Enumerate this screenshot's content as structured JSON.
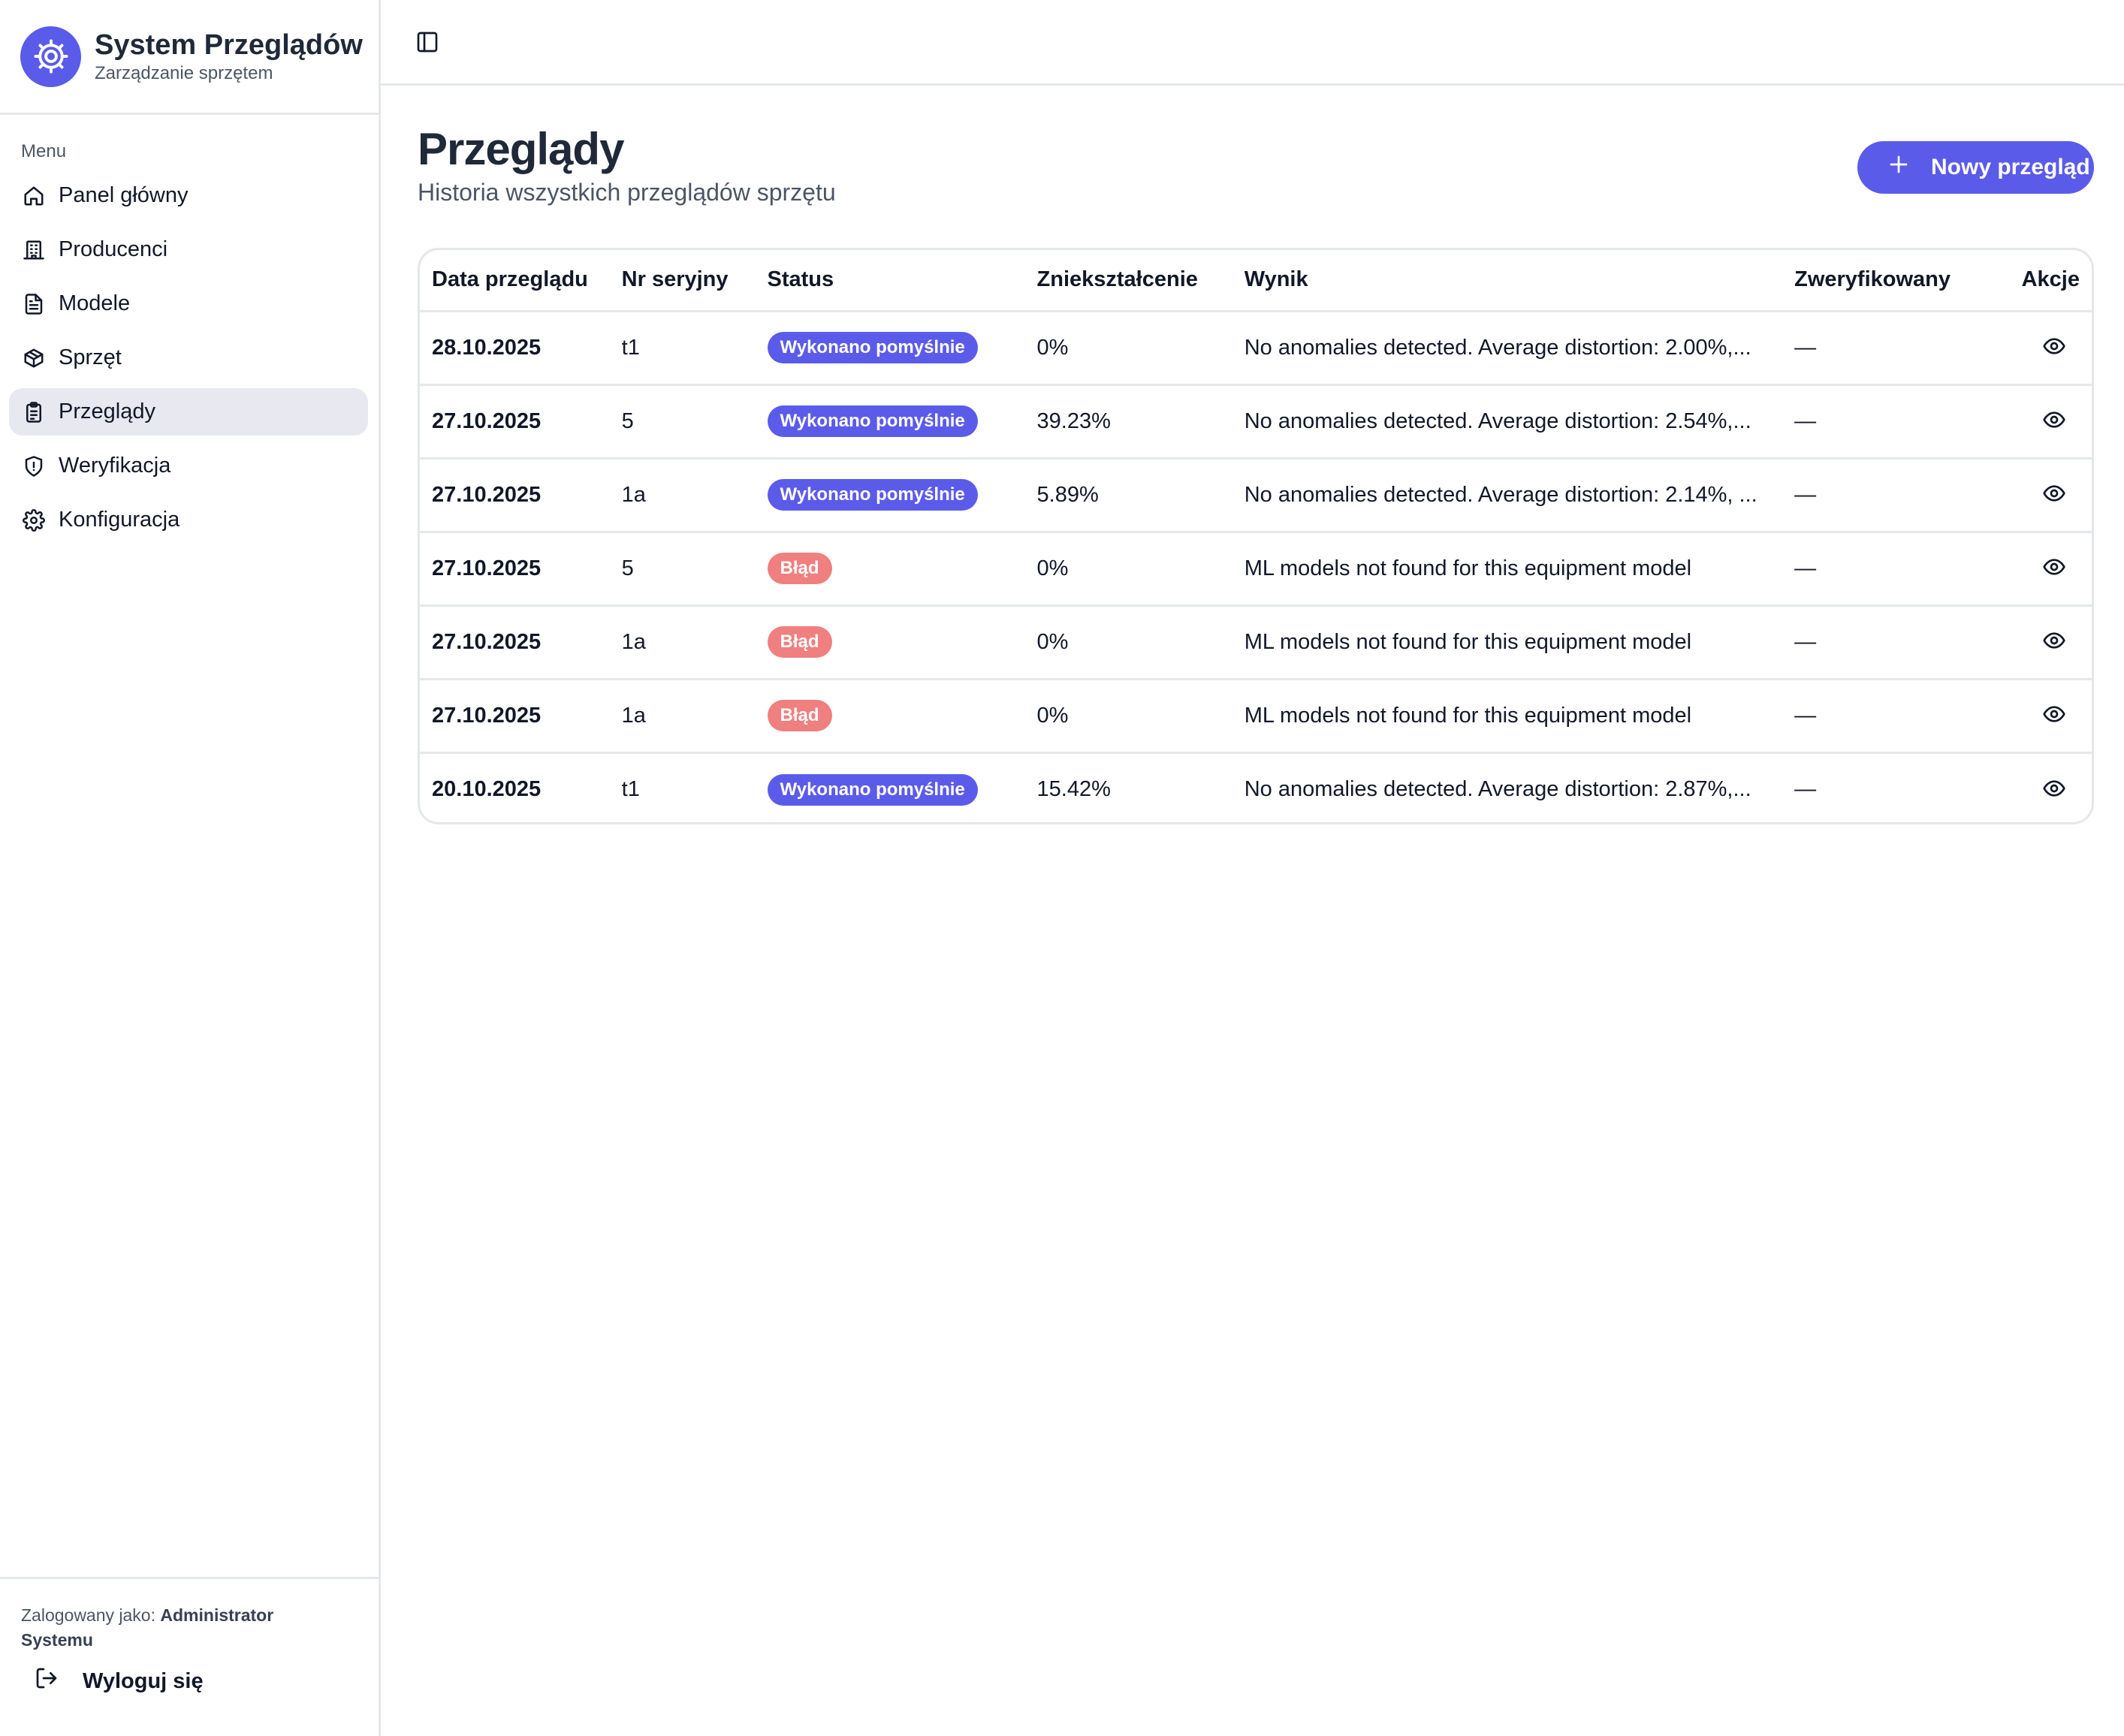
{
  "app": {
    "title": "System Przeglądów",
    "subtitle": "Zarządzanie sprzętem"
  },
  "sidebar": {
    "menu_label": "Menu",
    "items": [
      {
        "label": "Panel główny",
        "icon": "home-icon",
        "active": false
      },
      {
        "label": "Producenci",
        "icon": "building-icon",
        "active": false
      },
      {
        "label": "Modele",
        "icon": "document-icon",
        "active": false
      },
      {
        "label": "Sprzęt",
        "icon": "box-icon",
        "active": false
      },
      {
        "label": "Przeglądy",
        "icon": "clipboard-icon",
        "active": true
      },
      {
        "label": "Weryfikacja",
        "icon": "shield-icon",
        "active": false
      },
      {
        "label": "Konfiguracja",
        "icon": "gear-icon",
        "active": false
      }
    ],
    "footer": {
      "logged_as_prefix": "Zalogowany jako:",
      "user_name": "Administrator Systemu",
      "logout_label": "Wyloguj się"
    }
  },
  "page": {
    "title": "Przeglądy",
    "subtitle": "Historia wszystkich przeglądów sprzętu",
    "new_button_label": "Nowy przegląd"
  },
  "table": {
    "columns": [
      "Data przeglądu",
      "Nr seryjny",
      "Status",
      "Zniekształcenie",
      "Wynik",
      "Zweryfikowany",
      "Akcje"
    ],
    "rows": [
      {
        "date": "28.10.2025",
        "serial": "t1",
        "status": "Wykonano pomyślnie",
        "status_type": "success",
        "distortion": "0%",
        "result": "No anomalies detected. Average distortion: 2.00%,...",
        "verified": "—"
      },
      {
        "date": "27.10.2025",
        "serial": "5",
        "status": "Wykonano pomyślnie",
        "status_type": "success",
        "distortion": "39.23%",
        "result": "No anomalies detected. Average distortion: 2.54%,...",
        "verified": "—"
      },
      {
        "date": "27.10.2025",
        "serial": "1a",
        "status": "Wykonano pomyślnie",
        "status_type": "success",
        "distortion": "5.89%",
        "result": "No anomalies detected. Average distortion: 2.14%, ...",
        "verified": "—"
      },
      {
        "date": "27.10.2025",
        "serial": "5",
        "status": "Błąd",
        "status_type": "error",
        "distortion": "0%",
        "result": "ML models not found for this equipment model",
        "verified": "—"
      },
      {
        "date": "27.10.2025",
        "serial": "1a",
        "status": "Błąd",
        "status_type": "error",
        "distortion": "0%",
        "result": "ML models not found for this equipment model",
        "verified": "—"
      },
      {
        "date": "27.10.2025",
        "serial": "1a",
        "status": "Błąd",
        "status_type": "error",
        "distortion": "0%",
        "result": "ML models not found for this equipment model",
        "verified": "—"
      },
      {
        "date": "20.10.2025",
        "serial": "t1",
        "status": "Wykonano pomyślnie",
        "status_type": "success",
        "distortion": "15.42%",
        "result": "No anomalies detected. Average distortion: 2.87%,...",
        "verified": "—"
      }
    ]
  },
  "colors": {
    "accent": "#5b5bea",
    "error_badge": "#f07f7f",
    "active_nav_bg": "#e8e8f0",
    "border": "#e5e7eb"
  }
}
